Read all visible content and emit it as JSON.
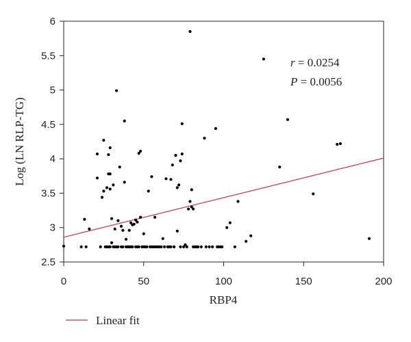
{
  "chart_data": {
    "type": "scatter",
    "xlabel": "RBP4",
    "ylabel": "Log (LN RLP-TG)",
    "xlim": [
      0,
      200
    ],
    "ylim": [
      2.5,
      6
    ],
    "xticks": [
      "0",
      "50",
      "100",
      "150",
      "200"
    ],
    "yticks": [
      "2.5",
      "3",
      "3.5",
      "4",
      "4.5",
      "5",
      "5.5",
      "6"
    ],
    "grid": false,
    "legend_position": "bottom-left",
    "annotations": [
      {
        "prefix": "r",
        "rest": " = 0.0254"
      },
      {
        "prefix": "P",
        "rest": " = 0.0056"
      }
    ],
    "series": [
      {
        "name": "Linear fit",
        "kind": "line",
        "color": "#cc3344",
        "x": [
          0,
          200
        ],
        "y": [
          2.86,
          4.01
        ]
      },
      {
        "kind": "scatter",
        "color": "#000000",
        "x": [
          0,
          11,
          13,
          14,
          16,
          21,
          21,
          23,
          24,
          25,
          25,
          26,
          27,
          27,
          28,
          28,
          28,
          29,
          29,
          29,
          29,
          30,
          30,
          31,
          31,
          32,
          32,
          33,
          33,
          34,
          34,
          35,
          36,
          36,
          37,
          37,
          38,
          38,
          39,
          39,
          40,
          41,
          41,
          42,
          42,
          43,
          43,
          44,
          45,
          45,
          46,
          46,
          47,
          47,
          48,
          48,
          49,
          50,
          50,
          51,
          52,
          53,
          54,
          55,
          55,
          56,
          57,
          57,
          58,
          59,
          60,
          61,
          62,
          63,
          64,
          65,
          66,
          67,
          67,
          68,
          69,
          69,
          70,
          71,
          71,
          72,
          73,
          73,
          74,
          74,
          75,
          76,
          77,
          78,
          79,
          79,
          80,
          80,
          81,
          81,
          82,
          83,
          84,
          86,
          88,
          89,
          91,
          93,
          95,
          96,
          97,
          98,
          99,
          102,
          104,
          107,
          109,
          114,
          117,
          125,
          135,
          140,
          156,
          171,
          173,
          191
        ],
        "y": [
          2.73,
          2.72,
          3.12,
          2.72,
          2.98,
          4.07,
          3.72,
          2.72,
          3.44,
          3.53,
          4.27,
          2.72,
          3.58,
          2.72,
          3.78,
          4.06,
          2.72,
          4.16,
          3.78,
          3.56,
          2.72,
          3.13,
          2.78,
          3.62,
          2.72,
          2.98,
          2.72,
          4.99,
          2.72,
          3.1,
          2.72,
          3.88,
          2.72,
          3.02,
          2.72,
          2.96,
          4.55,
          3.66,
          2.72,
          2.83,
          2.72,
          2.96,
          2.72,
          3.07,
          2.72,
          3.04,
          2.72,
          3.05,
          2.72,
          3.11,
          2.72,
          3.08,
          4.08,
          2.72,
          4.11,
          3.15,
          2.72,
          2.72,
          2.91,
          2.72,
          2.72,
          3.53,
          2.72,
          3.74,
          2.72,
          2.72,
          2.72,
          3.15,
          2.72,
          2.72,
          2.72,
          2.72,
          2.84,
          2.72,
          3.71,
          2.72,
          2.72,
          3.7,
          2.72,
          3.91,
          2.72,
          2.72,
          4.05,
          3.58,
          2.95,
          3.62,
          3.97,
          2.72,
          4.51,
          4.07,
          2.72,
          2.75,
          2.72,
          3.27,
          5.85,
          3.38,
          3.55,
          3.3,
          2.72,
          3.27,
          2.72,
          2.72,
          2.72,
          2.72,
          4.3,
          2.72,
          2.72,
          2.72,
          4.44,
          2.72,
          2.72,
          2.72,
          2.72,
          3.0,
          3.07,
          2.72,
          3.38,
          2.8,
          2.88,
          5.45,
          3.88,
          4.57,
          3.49,
          4.21,
          4.22,
          2.84
        ]
      }
    ]
  }
}
